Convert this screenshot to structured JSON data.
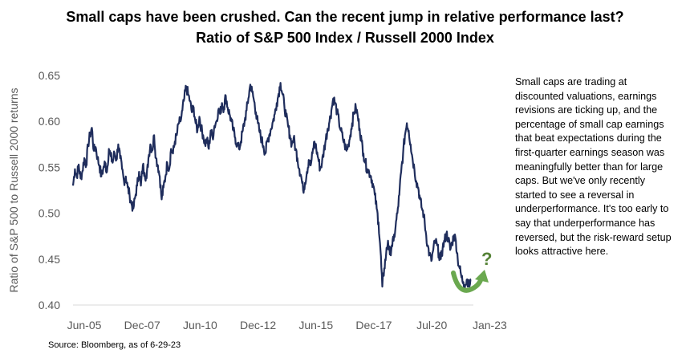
{
  "title_line1": "Small caps have been crushed. Can the recent jump in relative performance last?",
  "title_line2": "Ratio of S&P 500 Index / Russell 2000 Index",
  "note": "Small caps are trading at discounted valuations, earnings revisions are ticking up, and the percentage of small cap earnings that beat expectations during the first-quarter earnings season was meaningfully better than for large caps. But we've only recently started to see a reversal in underperformance. It's too early to say that underperformance has reversed, but the risk-reward setup looks attractive here.",
  "source": "Source: Bloomberg, as of 6-29-23",
  "colors": {
    "line": "#1f2d5c",
    "arrow": "#6aa84f",
    "question": "#548235",
    "tick_text": "#595959"
  },
  "annotation": {
    "question_mark": "?"
  },
  "chart_data": {
    "type": "line",
    "title": "Ratio of S&P 500 Index / Russell 2000 Index",
    "ylabel": "Ratio of S&P 500 to Russell 2000 returns",
    "xlabel": "",
    "ylim": [
      0.4,
      0.65
    ],
    "y_ticks": [
      "0.40",
      "0.45",
      "0.50",
      "0.55",
      "0.60",
      "0.65"
    ],
    "x_ticks": [
      "Jun-05",
      "Dec-07",
      "Jun-10",
      "Dec-12",
      "Jun-15",
      "Dec-17",
      "Jul-20",
      "Jan-23"
    ],
    "grid": false,
    "series": [
      {
        "values": [
          0.53,
          0.548,
          0.54,
          0.553,
          0.538,
          0.546,
          0.56,
          0.552,
          0.575,
          0.585,
          0.593,
          0.568,
          0.572,
          0.56,
          0.552,
          0.54,
          0.548,
          0.555,
          0.545,
          0.57,
          0.562,
          0.555,
          0.566,
          0.558,
          0.575,
          0.56,
          0.548,
          0.535,
          0.54,
          0.528,
          0.52,
          0.51,
          0.505,
          0.518,
          0.53,
          0.545,
          0.53,
          0.552,
          0.544,
          0.538,
          0.56,
          0.575,
          0.568,
          0.585,
          0.56,
          0.552,
          0.54,
          0.515,
          0.528,
          0.54,
          0.555,
          0.548,
          0.57,
          0.565,
          0.578,
          0.585,
          0.598,
          0.6,
          0.612,
          0.625,
          0.638,
          0.63,
          0.622,
          0.61,
          0.615,
          0.598,
          0.59,
          0.605,
          0.592,
          0.585,
          0.575,
          0.58,
          0.57,
          0.59,
          0.582,
          0.595,
          0.6,
          0.612,
          0.608,
          0.62,
          0.614,
          0.628,
          0.615,
          0.608,
          0.6,
          0.59,
          0.582,
          0.575,
          0.57,
          0.578,
          0.59,
          0.6,
          0.612,
          0.625,
          0.64,
          0.632,
          0.622,
          0.61,
          0.598,
          0.588,
          0.58,
          0.573,
          0.565,
          0.578,
          0.585,
          0.592,
          0.6,
          0.608,
          0.62,
          0.63,
          0.642,
          0.63,
          0.618,
          0.605,
          0.595,
          0.585,
          0.575,
          0.582,
          0.57,
          0.56,
          0.548,
          0.54,
          0.525,
          0.533,
          0.545,
          0.558,
          0.552,
          0.565,
          0.578,
          0.57,
          0.56,
          0.548,
          0.555,
          0.568,
          0.58,
          0.592,
          0.6,
          0.612,
          0.625,
          0.62,
          0.61,
          0.6,
          0.59,
          0.582,
          0.575,
          0.568,
          0.575,
          0.585,
          0.598,
          0.61,
          0.615,
          0.605,
          0.592,
          0.578,
          0.565,
          0.555,
          0.548,
          0.545,
          0.54,
          0.532,
          0.52,
          0.505,
          0.49,
          0.46,
          0.42,
          0.44,
          0.455,
          0.47,
          0.455,
          0.465,
          0.47,
          0.485,
          0.5,
          0.52,
          0.545,
          0.565,
          0.585,
          0.598,
          0.59,
          0.575,
          0.56,
          0.548,
          0.535,
          0.528,
          0.515,
          0.505,
          0.498,
          0.48,
          0.465,
          0.455,
          0.448,
          0.46,
          0.47,
          0.465,
          0.455,
          0.45,
          0.462,
          0.47,
          0.478,
          0.472,
          0.46,
          0.468,
          0.476,
          0.47,
          0.45,
          0.44,
          0.43,
          0.425,
          0.422,
          0.428,
          0.42,
          0.428
        ]
      }
    ]
  }
}
